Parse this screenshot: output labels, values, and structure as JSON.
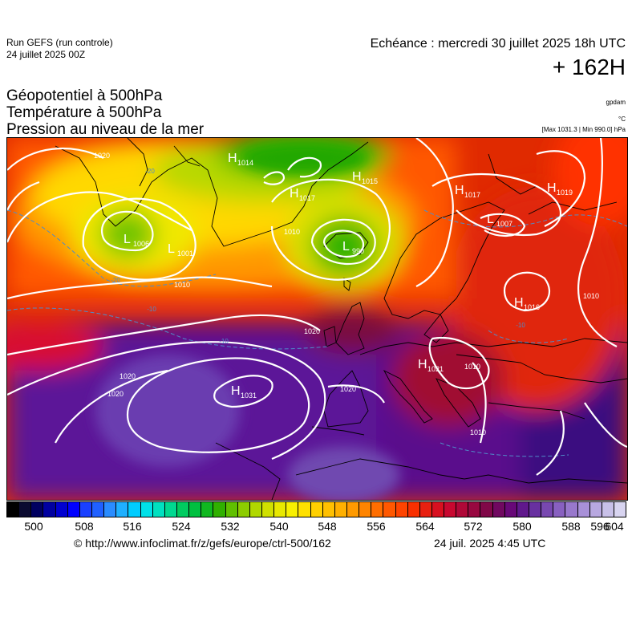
{
  "header": {
    "run_title": "Run GEFS (run controle)",
    "run_date": "24 juillet 2025 00Z",
    "valid_time": "Echéance : mercredi 30 juillet 2025 18h UTC",
    "lead_time": "+ 162H"
  },
  "fields": {
    "line1": "Géopotentiel à 500hPa",
    "line2": "Température à 500hPa",
    "line3": "Pression au niveau de la mer",
    "unit_geopotential": "gpdam",
    "unit_temperature": "°C",
    "minmax": "[Max 1031.3 | Min 990.0] hPa"
  },
  "pressure_centers": [
    {
      "type": "H",
      "value": "1014"
    },
    {
      "type": "H",
      "value": "1017"
    },
    {
      "type": "H",
      "value": "1015"
    },
    {
      "type": "H",
      "value": "1017"
    },
    {
      "type": "H",
      "value": "1019"
    },
    {
      "type": "L",
      "value": "1006"
    },
    {
      "type": "L",
      "value": "1001"
    },
    {
      "type": "L",
      "value": "990"
    },
    {
      "type": "L",
      "value": "1007"
    },
    {
      "type": "H",
      "value": "1016"
    },
    {
      "type": "H",
      "value": "1021"
    },
    {
      "type": "H",
      "value": "1031"
    }
  ],
  "isobar_labels": [
    "1020",
    "1010",
    "1010",
    "1020",
    "1020",
    "1020",
    "1010",
    "1010",
    "1010",
    "1020"
  ],
  "temperature_labels": [
    "-20",
    "-20",
    "-10",
    "-10",
    "-10"
  ],
  "colorbar": {
    "ticks": [
      "500",
      "508",
      "516",
      "524",
      "532",
      "540",
      "548",
      "556",
      "564",
      "572",
      "580",
      "588",
      "596",
      "604"
    ],
    "colors": [
      "#000000",
      "#0a0a30",
      "#000060",
      "#0000a0",
      "#0000d0",
      "#0000ff",
      "#1a40ff",
      "#2060ff",
      "#2a8cff",
      "#1fb0ff",
      "#00ccff",
      "#00e0e8",
      "#00e0c0",
      "#00d890",
      "#00cc60",
      "#00c040",
      "#10b820",
      "#30b000",
      "#60c000",
      "#8ccc00",
      "#b0d800",
      "#d0e000",
      "#e8e800",
      "#f8f000",
      "#ffe000",
      "#ffd000",
      "#ffc000",
      "#ffb000",
      "#ff9a00",
      "#ff8400",
      "#ff6e00",
      "#ff5800",
      "#ff4400",
      "#f83000",
      "#e82010",
      "#d81020",
      "#c80830",
      "#b00838",
      "#980840",
      "#800848",
      "#700860",
      "#680878",
      "#60188c",
      "#6830a0",
      "#7848b0",
      "#8860c0",
      "#9878cc",
      "#a890d8",
      "#b8a8e0",
      "#c8c0e8",
      "#d8d4f0"
    ]
  },
  "footer": {
    "source": "© http://www.infoclimat.fr/z/gefs/europe/ctrl-500/162",
    "generated": "24 juil. 2025  4:45 UTC"
  }
}
